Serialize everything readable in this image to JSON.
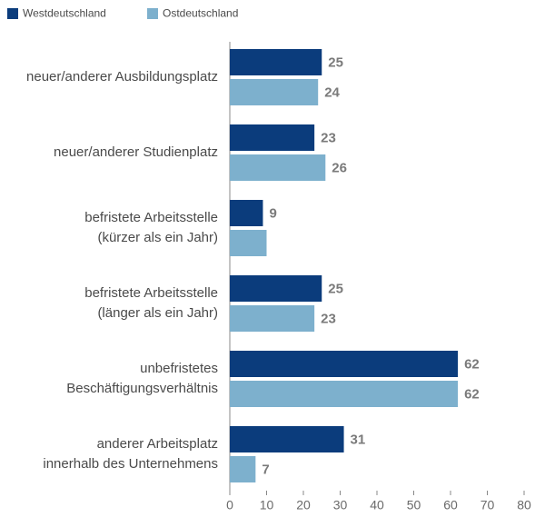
{
  "chart_data": {
    "type": "bar",
    "orientation": "horizontal",
    "categories": [
      [
        "neuer/anderer Ausbildungsplatz"
      ],
      [
        "neuer/anderer Studienplatz"
      ],
      [
        "befristete Arbeitsstelle",
        "(kürzer als ein Jahr)"
      ],
      [
        "befristete Arbeitsstelle",
        "(länger als ein Jahr)"
      ],
      [
        "unbefristetes",
        "Beschäftigungsverhältnis"
      ],
      [
        "anderer Arbeitsplatz",
        "innerhalb des Unternehmens"
      ]
    ],
    "series": [
      {
        "name": "Westdeutschland",
        "color": "#0b3c7c",
        "values": [
          25,
          23,
          9,
          25,
          62,
          31
        ],
        "value_labels": [
          "25",
          "23",
          "9",
          "25",
          "62",
          "31"
        ]
      },
      {
        "name": "Ostdeutschland",
        "color": "#7db0cd",
        "values": [
          24,
          26,
          10,
          23,
          62,
          7
        ],
        "value_labels": [
          "24",
          "26",
          null,
          "23",
          "62",
          "7"
        ]
      }
    ],
    "xlim": [
      0,
      80
    ],
    "xticks": [
      0,
      10,
      20,
      30,
      40,
      50,
      60,
      70,
      80
    ],
    "legend": "top-left"
  }
}
